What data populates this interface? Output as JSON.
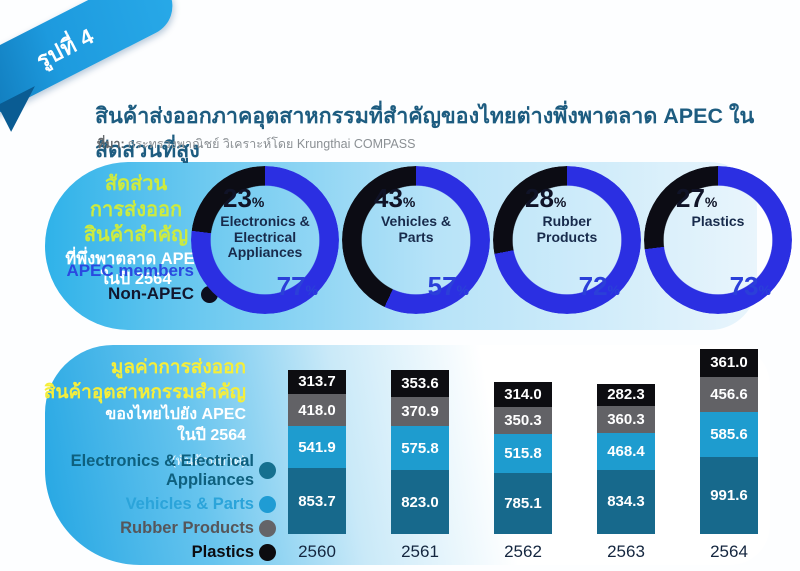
{
  "badge": {
    "label": "รูปที่ 4"
  },
  "header": {
    "title": "สินค้าส่งออกภาคอุตสาหกรรมที่สำคัญของไทยต่างพึ่งพาตลาด APEC ในสัดส่วนที่สูง",
    "source_prefix": "ที่มา:",
    "source": "กระทรวงพาณิชย์ วิเคราะห์โดย Krungthai COMPASS"
  },
  "share_panel": {
    "heading_lines": [
      "สัดส่วน",
      "การส่งออก",
      "สินค้าสำคัญ"
    ],
    "subheading_lines": [
      "ที่พึ่งพาตลาด APEC",
      "ในปี 2564"
    ],
    "legend": [
      {
        "label": "APEC members",
        "dot_color": "#2f36e8",
        "text_color": "#2a49e0"
      },
      {
        "label": "Non-APEC",
        "dot_color": "#0c0e1e",
        "text_color": "#12172e"
      }
    ]
  },
  "value_panel": {
    "heading_lines": [
      "มูลค่าการส่งออก",
      "สินค้าอุตสาหกรรมสำคัญ"
    ],
    "subheading_lines": [
      "ของไทยไปยัง APEC",
      "ในปี 2564"
    ],
    "unit_note": "(พันล้านบาท)",
    "legend": [
      {
        "label_lines": [
          "Electronics & Electrical",
          "Appliances"
        ],
        "dot_color": "#15708f",
        "text_color": "#0e607e"
      },
      {
        "label_lines": [
          "Vehicles & Parts"
        ],
        "dot_color": "#1f9cd4",
        "text_color": "#2ba4da"
      },
      {
        "label_lines": [
          "Rubber Products"
        ],
        "dot_color": "#646468",
        "text_color": "#56565a"
      },
      {
        "label_lines": [
          "Plastics"
        ],
        "dot_color": "#0c0c10",
        "text_color": "#0c0c10"
      }
    ]
  },
  "chart_data": [
    {
      "type": "pie",
      "variant": "donut",
      "title": "สัดส่วนการส่งออกสินค้าสำคัญที่พึ่งพาตลาด APEC ในปี 2564",
      "legend": [
        "APEC members",
        "Non-APEC"
      ],
      "colors": {
        "apec": "#2b2fe2",
        "non_apec": "#0c0c14"
      },
      "donuts": [
        {
          "label": "Electronics & Electrical Appliances",
          "label_lines": [
            "Electronics &",
            "Electrical",
            "Appliances"
          ],
          "apec_pct": 77,
          "non_apec_pct": 23
        },
        {
          "label": "Vehicles & Parts",
          "label_lines": [
            "Vehicles &",
            "Parts"
          ],
          "apec_pct": 57,
          "non_apec_pct": 43
        },
        {
          "label": "Rubber Products",
          "label_lines": [
            "Rubber",
            "Products"
          ],
          "apec_pct": 72,
          "non_apec_pct": 28
        },
        {
          "label": "Plastics",
          "label_lines": [
            "Plastics"
          ],
          "apec_pct": 73,
          "non_apec_pct": 27
        }
      ]
    },
    {
      "type": "bar",
      "stacked": true,
      "title": "มูลค่าการส่งออกสินค้าอุตสาหกรรมสำคัญของไทยไปยัง APEC ในปี 2564 (พันล้านบาท)",
      "unit": "พันล้านบาท",
      "categories": [
        "2560",
        "2561",
        "2562",
        "2563",
        "2564"
      ],
      "series": [
        {
          "name": "Electronics & Electrical Appliances",
          "color": "#17698c",
          "values": [
            853.7,
            823.0,
            785.1,
            834.3,
            991.6
          ]
        },
        {
          "name": "Vehicles & Parts",
          "color": "#1e9ccf",
          "values": [
            541.9,
            575.8,
            515.8,
            468.4,
            585.6
          ]
        },
        {
          "name": "Rubber Products",
          "color": "#626266",
          "values": [
            418.0,
            370.9,
            350.3,
            360.3,
            456.6
          ]
        },
        {
          "name": "Plastics",
          "color": "#0d0d11",
          "values": [
            313.7,
            353.6,
            314.0,
            282.3,
            361.0
          ]
        }
      ]
    }
  ]
}
